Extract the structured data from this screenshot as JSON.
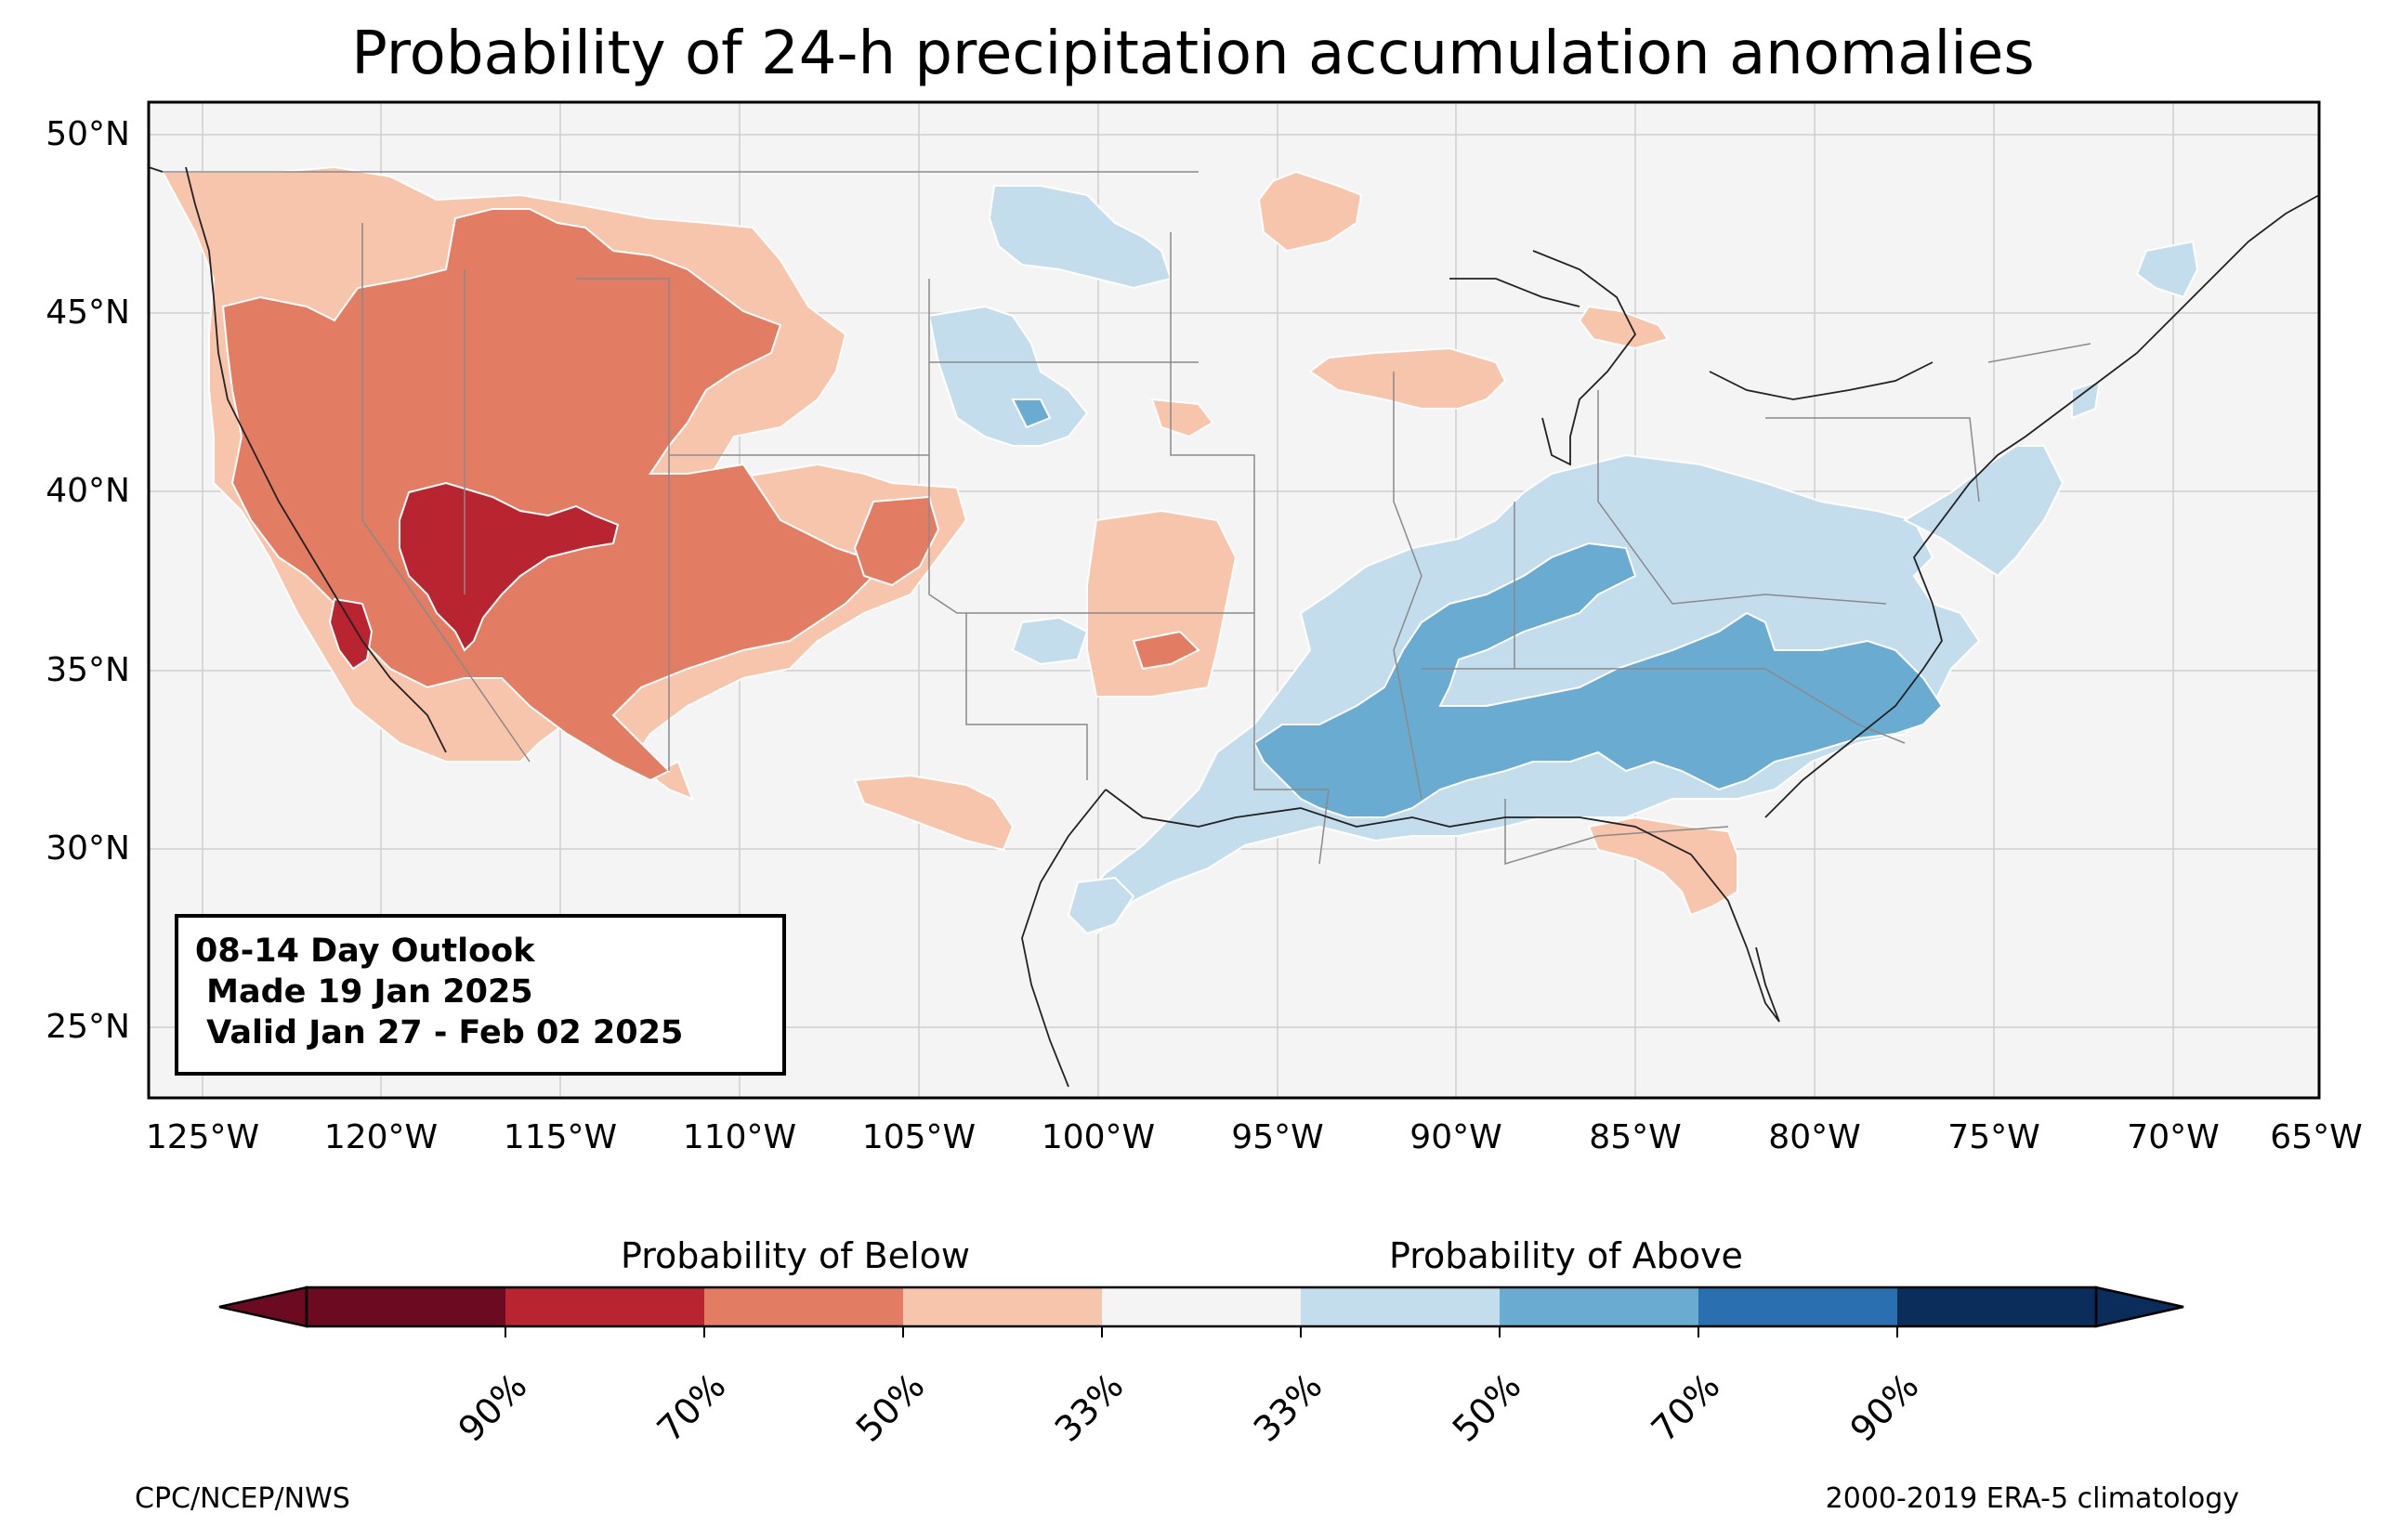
{
  "title": "Probability of 24-h precipitation accumulation anomalies",
  "map": {
    "projection": "plate-carree",
    "lon_range": [
      -125.6,
      -65.0
    ],
    "lat_range": [
      23.0,
      50.9
    ],
    "lat_ticks": [
      "50°N",
      "45°N",
      "40°N",
      "35°N",
      "30°N",
      "25°N"
    ],
    "lon_ticks": [
      "125°W",
      "120°W",
      "115°W",
      "110°W",
      "105°W",
      "100°W",
      "95°W",
      "90°W",
      "85°W",
      "80°W",
      "75°W",
      "70°W",
      "65°W"
    ],
    "background_color": "#f4f4f4",
    "gridlines": true,
    "region": "Contiguous United States"
  },
  "info_box": {
    "line1": "08-14 Day Outlook",
    "line2": " Made 19 Jan 2025",
    "line3": " Valid Jan 27 - Feb 02 2025"
  },
  "colorbar": {
    "below_label": "Probability of Below",
    "above_label": "Probability of Above",
    "tick_labels": [
      "90%",
      "70%",
      "50%",
      "33%",
      "33%",
      "50%",
      "70%",
      "90%"
    ],
    "colors": [
      "#67001f",
      "#b2182b",
      "#d6604d",
      "#f4a582",
      "#f7f7f7",
      "#d1e5f0",
      "#92c5de",
      "#4393c3",
      "#2166ac",
      "#053061"
    ],
    "segment_colors": [
      "#6b0a20",
      "#b8242f",
      "#e27c63",
      "#f7c5ac",
      "#f4f4f4",
      "#c3dded",
      "#6aabd2",
      "#2a6fb0",
      "#0a2d5c"
    ]
  },
  "footer": {
    "left": "CPC/NCEP/NWS",
    "right": "2000-2019 ERA-5 climatology"
  },
  "anomaly_regions": [
    {
      "category": "below",
      "level": "33-50%",
      "area": "Western US and Pacific Northwest"
    },
    {
      "category": "below",
      "level": "50-70%",
      "area": "Great Basin, California, Southwest"
    },
    {
      "category": "below",
      "level": "70-90%",
      "area": "Nevada and Southern California"
    },
    {
      "category": "below",
      "level": "33-50%",
      "area": "Southern Plains, West Texas, Upper Midwest, Northern Florida"
    },
    {
      "category": "above",
      "level": "33-50%",
      "area": "Ohio Valley, Mid-South, Gulf Coast, Northern Plains, New England"
    },
    {
      "category": "above",
      "level": "50-70%",
      "area": "Tennessee Valley, Southeast, Carolinas"
    }
  ]
}
